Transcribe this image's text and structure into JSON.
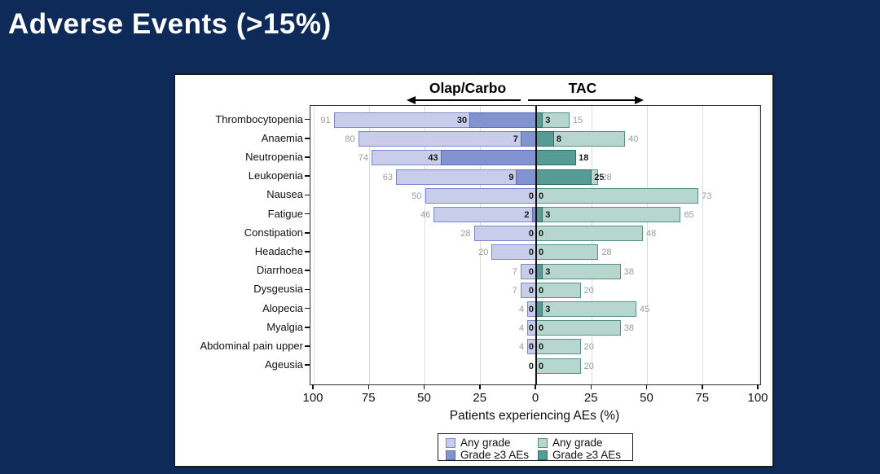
{
  "slide": {
    "title": "Adverse Events (>15%)"
  },
  "icons": {
    "left_arrow": "arrow-left",
    "right_arrow": "arrow-right"
  },
  "colors": {
    "background": "#0e2a58",
    "panel": "#ffffff",
    "olap_any_fill": "#c8cee9",
    "olap_any_stroke": "#7c87ce",
    "olap_g3_fill": "#8194cf",
    "olap_g3_stroke": "#5b6cb4",
    "tac_any_fill": "#b7d7ce",
    "tac_any_stroke": "#569188",
    "tac_g3_fill": "#579c94",
    "tac_g3_stroke": "#2f6e66",
    "any_value_label": "#9a9a9a",
    "g3_value_label": "#1a1a1a"
  },
  "chart_data": {
    "type": "bar",
    "variant": "diverging-butterfly",
    "group_left": {
      "label": "Olap/Carbo"
    },
    "group_right": {
      "label": "TAC"
    },
    "categories": [
      "Thrombocytopenia",
      "Anaemia",
      "Neutropenia",
      "Leukopenia",
      "Nausea",
      "Fatigue",
      "Constipation",
      "Headache",
      "Diarrhoea",
      "Dysgeusia",
      "Alopecia",
      "Myalgia",
      "Abdominal pain upper",
      "Ageusia"
    ],
    "series": {
      "olap_any": {
        "name": "Any grade",
        "group": "Olap/Carbo",
        "side": "left",
        "values": [
          91,
          80,
          74,
          63,
          50,
          46,
          28,
          20,
          7,
          7,
          4,
          4,
          4,
          0
        ]
      },
      "olap_g3": {
        "name": "Grade ≥3 AEs",
        "group": "Olap/Carbo",
        "side": "left",
        "values": [
          30,
          7,
          43,
          9,
          0,
          2,
          0,
          0,
          0,
          0,
          0,
          0,
          0,
          0
        ]
      },
      "tac_g3": {
        "name": "Grade ≥3 AEs",
        "group": "TAC",
        "side": "right",
        "values": [
          3,
          8,
          18,
          25,
          0,
          3,
          0,
          0,
          3,
          0,
          3,
          0,
          0,
          0
        ]
      },
      "tac_any": {
        "name": "Any grade",
        "group": "TAC",
        "side": "right",
        "values": [
          15,
          40,
          18,
          28,
          73,
          65,
          48,
          28,
          38,
          20,
          45,
          38,
          20,
          20
        ]
      }
    },
    "xlabel": "Patients experiencing AEs (%)",
    "x_ticks": [
      {
        "value": -100,
        "label": "100"
      },
      {
        "value": -75,
        "label": "75"
      },
      {
        "value": -50,
        "label": "50"
      },
      {
        "value": -25,
        "label": "25"
      },
      {
        "value": 0,
        "label": "0"
      },
      {
        "value": 25,
        "label": "25"
      },
      {
        "value": 50,
        "label": "50"
      },
      {
        "value": 75,
        "label": "75"
      },
      {
        "value": 100,
        "label": "100"
      }
    ],
    "xlim": [
      -100,
      100
    ],
    "grid": true,
    "legend": {
      "position": "bottom",
      "items": [
        {
          "label": "Any grade",
          "series": "olap_any"
        },
        {
          "label": "Grade ≥3 AEs",
          "series": "olap_g3"
        },
        {
          "label": "Any grade",
          "series": "tac_any"
        },
        {
          "label": "Grade ≥3 AEs",
          "series": "tac_g3"
        }
      ]
    }
  }
}
